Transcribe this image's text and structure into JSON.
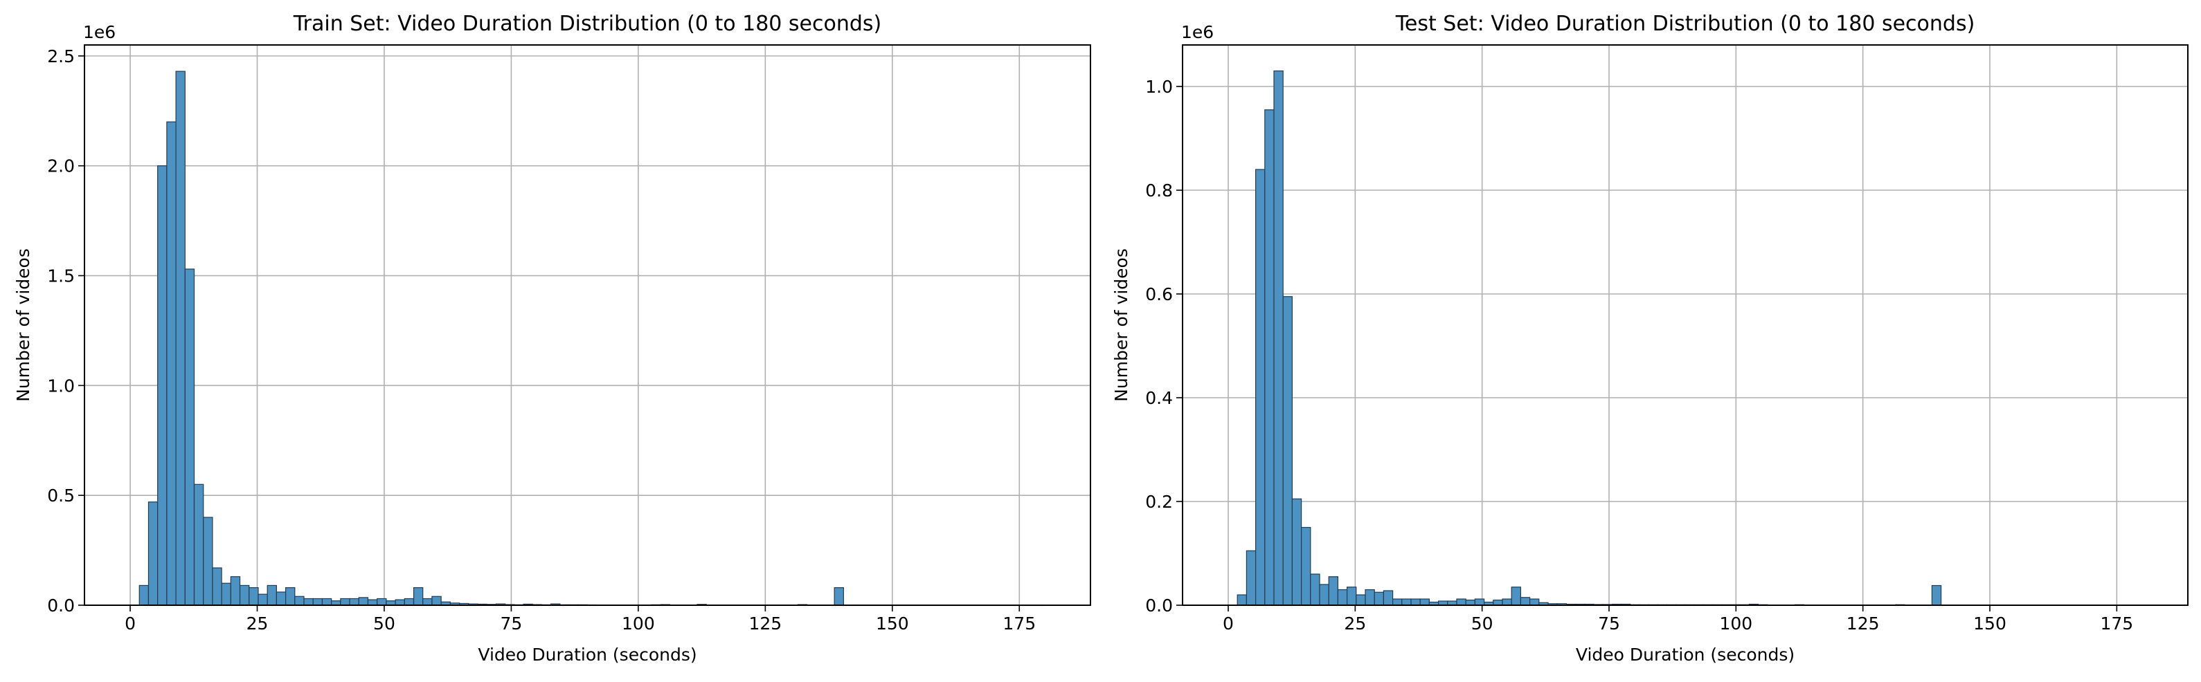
{
  "chart_data": [
    {
      "type": "bar",
      "title": "Train Set: Video Duration Distribution (0 to 180 seconds)",
      "xlabel": "Video Duration (seconds)",
      "ylabel": "Number of videos",
      "y_offset_label": "1e6",
      "xlim": [
        -9,
        189
      ],
      "ylim": [
        0,
        2550000
      ],
      "bin_start": 0,
      "bin_width": 1.8,
      "x_ticks": [
        0,
        25,
        50,
        75,
        100,
        125,
        150,
        175
      ],
      "y_ticks": [
        0,
        500000,
        1000000,
        1500000,
        2000000,
        2500000
      ],
      "y_tick_labels": [
        "0.0",
        "0.5",
        "1.0",
        "1.5",
        "2.0",
        "2.5"
      ],
      "grid": true,
      "bar_color": "#4c92c3",
      "values": [
        0,
        90000,
        470000,
        2000000,
        2200000,
        2430000,
        1530000,
        550000,
        400000,
        170000,
        100000,
        130000,
        90000,
        80000,
        50000,
        90000,
        60000,
        80000,
        40000,
        30000,
        30000,
        30000,
        20000,
        30000,
        30000,
        35000,
        25000,
        30000,
        20000,
        25000,
        30000,
        80000,
        30000,
        40000,
        15000,
        10000,
        8000,
        6000,
        5000,
        4000,
        6000,
        3000,
        2000,
        5000,
        3000,
        2000,
        6000,
        2000,
        2000,
        2000,
        1500,
        1200,
        1000,
        1000,
        1000,
        1000,
        1000,
        2000,
        3000,
        1000,
        1000,
        1000,
        4000,
        1000,
        1000,
        1000,
        1000,
        1000,
        1000,
        1000,
        1000,
        1000,
        1000,
        3000,
        1000,
        1000,
        1000,
        80000,
        500,
        500,
        500,
        500,
        500,
        500,
        500,
        500,
        500,
        500,
        500,
        500,
        500,
        500,
        500,
        500,
        500,
        500,
        500,
        500,
        500,
        500
      ]
    },
    {
      "type": "bar",
      "title": "Test Set: Video Duration Distribution (0 to 180 seconds)",
      "xlabel": "Video Duration (seconds)",
      "ylabel": "Number of videos",
      "y_offset_label": "1e6",
      "xlim": [
        -9,
        189
      ],
      "ylim": [
        0,
        1080000
      ],
      "bin_start": 0,
      "bin_width": 1.8,
      "x_ticks": [
        0,
        25,
        50,
        75,
        100,
        125,
        150,
        175
      ],
      "y_ticks": [
        0,
        200000,
        400000,
        600000,
        800000,
        1000000
      ],
      "y_tick_labels": [
        "0.0",
        "0.2",
        "0.4",
        "0.6",
        "0.8",
        "1.0"
      ],
      "grid": true,
      "bar_color": "#4c92c3",
      "values": [
        0,
        20000,
        105000,
        840000,
        955000,
        1030000,
        595000,
        205000,
        150000,
        60000,
        40000,
        55000,
        30000,
        35000,
        20000,
        30000,
        25000,
        28000,
        12000,
        12000,
        12000,
        12000,
        6000,
        8000,
        8000,
        12000,
        10000,
        12000,
        6000,
        10000,
        12000,
        35000,
        15000,
        12000,
        5000,
        3000,
        3000,
        2000,
        2000,
        2000,
        1500,
        1500,
        2000,
        2000,
        1000,
        1000,
        1000,
        1000,
        1000,
        1000,
        1000,
        1000,
        1000,
        1000,
        1000,
        1000,
        1000,
        2000,
        1000,
        500,
        500,
        500,
        1000,
        500,
        500,
        500,
        500,
        500,
        500,
        500,
        500,
        500,
        500,
        1000,
        500,
        500,
        500,
        38000,
        300,
        300,
        300,
        300,
        300,
        300,
        300,
        300,
        300,
        300,
        300,
        300,
        300,
        300,
        300,
        300,
        300,
        300,
        300,
        300,
        300,
        300
      ]
    }
  ]
}
